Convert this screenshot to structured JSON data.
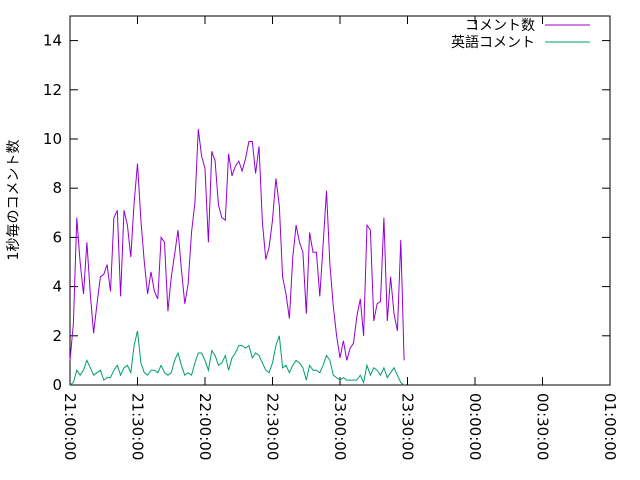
{
  "chart_data": {
    "type": "line",
    "ylabel": "1秒毎のコメント数",
    "ylim": [
      0,
      15
    ],
    "yticks": [
      0,
      2,
      4,
      6,
      8,
      10,
      12,
      14
    ],
    "xlim_minutes": [
      0,
      240
    ],
    "xticks": [
      {
        "minutes": 0,
        "label": "21:00:00"
      },
      {
        "minutes": 30,
        "label": "21:30:00"
      },
      {
        "minutes": 60,
        "label": "22:00:00"
      },
      {
        "minutes": 90,
        "label": "22:30:00"
      },
      {
        "minutes": 120,
        "label": "23:00:00"
      },
      {
        "minutes": 150,
        "label": "23:30:00"
      },
      {
        "minutes": 180,
        "label": "00:00:00"
      },
      {
        "minutes": 210,
        "label": "00:30:00"
      },
      {
        "minutes": 240,
        "label": "01:00:00"
      }
    ],
    "legend_position": "top-right",
    "series": [
      {
        "name": "コメント数",
        "color": "#9400d3",
        "points": [
          [
            0,
            1.0
          ],
          [
            1.5,
            2.5
          ],
          [
            3,
            6.8
          ],
          [
            4.5,
            5.0
          ],
          [
            6,
            3.7
          ],
          [
            7.5,
            5.8
          ],
          [
            9,
            3.7
          ],
          [
            10.5,
            2.1
          ],
          [
            12,
            3.3
          ],
          [
            13.5,
            4.4
          ],
          [
            15,
            4.5
          ],
          [
            16.5,
            4.9
          ],
          [
            18,
            3.8
          ],
          [
            19.5,
            6.8
          ],
          [
            21,
            7.1
          ],
          [
            22.5,
            3.6
          ],
          [
            24,
            7.1
          ],
          [
            25.5,
            6.5
          ],
          [
            27,
            5.2
          ],
          [
            28.5,
            7.4
          ],
          [
            30,
            9.0
          ],
          [
            31.5,
            6.7
          ],
          [
            33,
            5.0
          ],
          [
            34.5,
            3.7
          ],
          [
            36,
            4.6
          ],
          [
            37.5,
            3.8
          ],
          [
            39,
            3.5
          ],
          [
            40.5,
            6.0
          ],
          [
            42,
            5.8
          ],
          [
            43.5,
            3.0
          ],
          [
            45,
            4.4
          ],
          [
            46.5,
            5.3
          ],
          [
            48,
            6.3
          ],
          [
            49.5,
            4.7
          ],
          [
            51,
            3.3
          ],
          [
            52.5,
            4.1
          ],
          [
            54,
            6.2
          ],
          [
            55.5,
            7.4
          ],
          [
            57,
            10.4
          ],
          [
            58.5,
            9.3
          ],
          [
            60,
            8.8
          ],
          [
            61.5,
            5.8
          ],
          [
            63,
            9.5
          ],
          [
            64.5,
            9.1
          ],
          [
            66,
            7.3
          ],
          [
            67.5,
            6.8
          ],
          [
            69,
            6.7
          ],
          [
            70.5,
            9.4
          ],
          [
            72,
            8.5
          ],
          [
            73.5,
            8.9
          ],
          [
            75,
            9.1
          ],
          [
            76.5,
            8.7
          ],
          [
            78,
            9.2
          ],
          [
            79.5,
            9.9
          ],
          [
            81,
            9.9
          ],
          [
            82.5,
            8.6
          ],
          [
            84,
            9.7
          ],
          [
            85.5,
            6.6
          ],
          [
            87,
            5.1
          ],
          [
            88.5,
            5.6
          ],
          [
            90,
            6.7
          ],
          [
            91.5,
            8.4
          ],
          [
            93,
            7.3
          ],
          [
            94.5,
            4.4
          ],
          [
            96,
            3.7
          ],
          [
            97.5,
            2.7
          ],
          [
            99,
            5.2
          ],
          [
            100.5,
            6.5
          ],
          [
            102,
            5.8
          ],
          [
            103.5,
            5.4
          ],
          [
            105,
            2.9
          ],
          [
            106.5,
            6.2
          ],
          [
            108,
            5.4
          ],
          [
            109.5,
            5.4
          ],
          [
            111,
            3.6
          ],
          [
            112.5,
            5.7
          ],
          [
            114,
            7.9
          ],
          [
            115.5,
            4.9
          ],
          [
            117,
            3.2
          ],
          [
            118.5,
            2.0
          ],
          [
            120,
            1.1
          ],
          [
            121.5,
            1.8
          ],
          [
            123,
            1.0
          ],
          [
            124.5,
            1.5
          ],
          [
            126,
            1.7
          ],
          [
            127.5,
            2.8
          ],
          [
            129,
            3.5
          ],
          [
            130.5,
            2.0
          ],
          [
            132,
            6.5
          ],
          [
            133.5,
            6.3
          ],
          [
            135,
            2.6
          ],
          [
            136.5,
            3.3
          ],
          [
            138,
            3.4
          ],
          [
            139.5,
            6.8
          ],
          [
            141,
            2.6
          ],
          [
            142.5,
            4.4
          ],
          [
            144,
            2.9
          ],
          [
            145.5,
            2.2
          ],
          [
            147,
            5.9
          ],
          [
            148.5,
            1.0
          ]
        ]
      },
      {
        "name": "英語コメント",
        "color": "#009e73",
        "points": [
          [
            0,
            0
          ],
          [
            1.5,
            0.1
          ],
          [
            3,
            0.6
          ],
          [
            4.5,
            0.4
          ],
          [
            6,
            0.6
          ],
          [
            7.5,
            1.0
          ],
          [
            9,
            0.7
          ],
          [
            10.5,
            0.4
          ],
          [
            12,
            0.5
          ],
          [
            13.5,
            0.6
          ],
          [
            15,
            0.2
          ],
          [
            16.5,
            0.3
          ],
          [
            18,
            0.3
          ],
          [
            19.5,
            0.6
          ],
          [
            21,
            0.8
          ],
          [
            22.5,
            0.4
          ],
          [
            24,
            0.7
          ],
          [
            25.5,
            0.8
          ],
          [
            27,
            0.5
          ],
          [
            28.5,
            1.6
          ],
          [
            30,
            2.2
          ],
          [
            31.5,
            0.9
          ],
          [
            33,
            0.5
          ],
          [
            34.5,
            0.4
          ],
          [
            36,
            0.6
          ],
          [
            37.5,
            0.6
          ],
          [
            39,
            0.5
          ],
          [
            40.5,
            0.8
          ],
          [
            42,
            0.5
          ],
          [
            43.5,
            0.4
          ],
          [
            45,
            0.5
          ],
          [
            46.5,
            1.0
          ],
          [
            48,
            1.3
          ],
          [
            49.5,
            0.8
          ],
          [
            51,
            0.4
          ],
          [
            52.5,
            0.5
          ],
          [
            54,
            0.4
          ],
          [
            55.5,
            0.9
          ],
          [
            57,
            1.3
          ],
          [
            58.5,
            1.3
          ],
          [
            60,
            1.0
          ],
          [
            61.5,
            0.6
          ],
          [
            63,
            1.4
          ],
          [
            64.5,
            1.2
          ],
          [
            66,
            0.8
          ],
          [
            67.5,
            0.9
          ],
          [
            69,
            1.2
          ],
          [
            70.5,
            0.6
          ],
          [
            72,
            1.1
          ],
          [
            73.5,
            1.3
          ],
          [
            75,
            1.6
          ],
          [
            76.5,
            1.6
          ],
          [
            78,
            1.5
          ],
          [
            79.5,
            1.6
          ],
          [
            81,
            1.1
          ],
          [
            82.5,
            1.3
          ],
          [
            84,
            1.2
          ],
          [
            85.5,
            0.9
          ],
          [
            87,
            0.6
          ],
          [
            88.5,
            0.5
          ],
          [
            90,
            0.9
          ],
          [
            91.5,
            1.6
          ],
          [
            93,
            2.0
          ],
          [
            94.5,
            0.7
          ],
          [
            96,
            0.8
          ],
          [
            97.5,
            0.5
          ],
          [
            99,
            0.8
          ],
          [
            100.5,
            1.0
          ],
          [
            102,
            0.9
          ],
          [
            103.5,
            0.7
          ],
          [
            105,
            0.2
          ],
          [
            106.5,
            0.8
          ],
          [
            108,
            0.6
          ],
          [
            109.5,
            0.6
          ],
          [
            111,
            0.5
          ],
          [
            112.5,
            0.8
          ],
          [
            114,
            1.2
          ],
          [
            115.5,
            1.0
          ],
          [
            117,
            0.4
          ],
          [
            118.5,
            0.3
          ],
          [
            120,
            0.2
          ],
          [
            121.5,
            0.3
          ],
          [
            123,
            0.2
          ],
          [
            124.5,
            0.2
          ],
          [
            126,
            0.2
          ],
          [
            127.5,
            0.2
          ],
          [
            129,
            0.4
          ],
          [
            130.5,
            0.1
          ],
          [
            132,
            0.8
          ],
          [
            133.5,
            0.4
          ],
          [
            135,
            0.7
          ],
          [
            136.5,
            0.6
          ],
          [
            138,
            0.4
          ],
          [
            139.5,
            0.7
          ],
          [
            141,
            0.3
          ],
          [
            142.5,
            0.5
          ],
          [
            144,
            0.7
          ],
          [
            145.5,
            0.4
          ],
          [
            147,
            0.1
          ],
          [
            148.5,
            0
          ]
        ]
      }
    ]
  }
}
